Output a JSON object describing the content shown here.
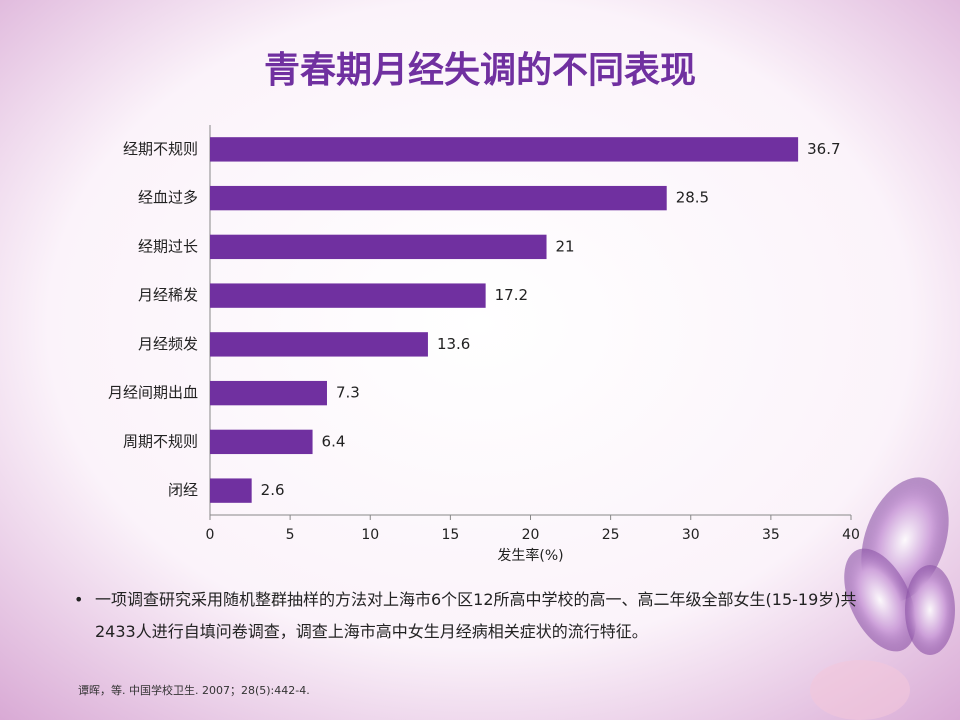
{
  "chart_data": {
    "type": "barh",
    "title": "青春期月经失调的不同表现",
    "categories": [
      "经期不规则",
      "经血过多",
      "经期过长",
      "月经稀发",
      "月经频发",
      "月经间期出血",
      "周期不规则",
      "闭经"
    ],
    "values": [
      36.7,
      28.5,
      21,
      17.2,
      13.6,
      7.3,
      6.4,
      2.6
    ],
    "color": "#7030a0",
    "xlim": [
      0,
      40
    ],
    "xticks": [
      0,
      5,
      10,
      15,
      20,
      25,
      30,
      35,
      40
    ],
    "xlabel": "发生率(%)",
    "grid": false
  },
  "bullet": "一项调查研究采用随机整群抽样的方法对上海市6个区12所高中学校的高一、高二年级全部女生(15-19岁)共2433人进行自填问卷调查，调查上海市高中女生月经病相关症状的流行特征。",
  "citation": "谭晖，等. 中国学校卫生. 2007；28(5):442-4."
}
